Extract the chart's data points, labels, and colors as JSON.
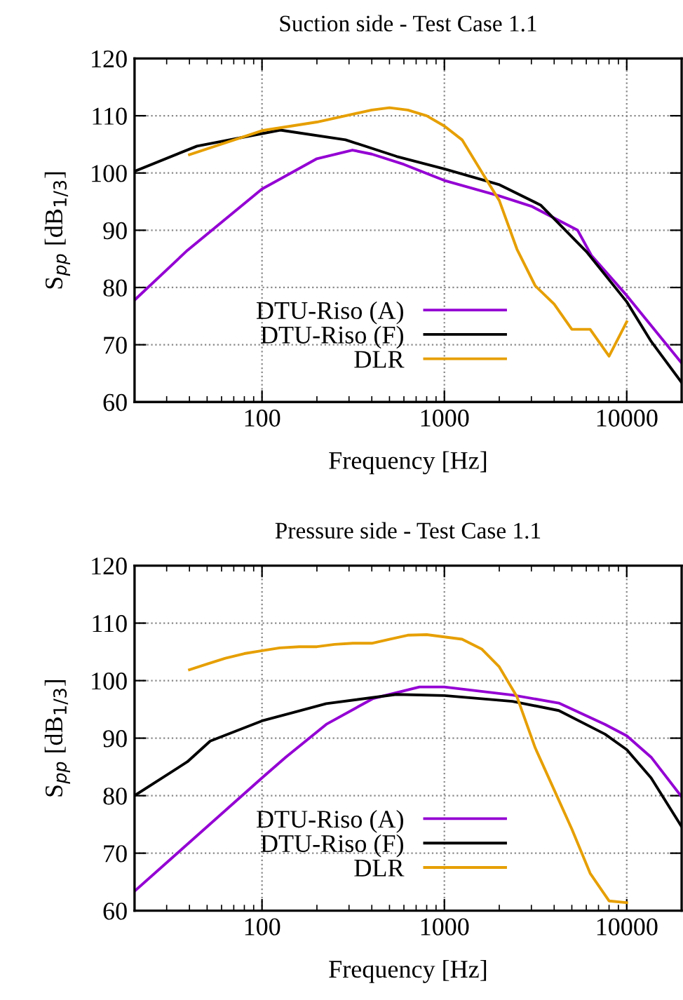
{
  "chart_data": [
    {
      "type": "line",
      "title": "Suction side - Test Case 1.1",
      "xlabel": "Frequency [Hz]",
      "ylabel": "S$_{pp}$ [dB$_{1/3}$]",
      "log": "x",
      "xlim": [
        20,
        20000
      ],
      "xticks": [
        100,
        1000,
        10000
      ],
      "ylim": [
        60,
        120
      ],
      "yticks": [
        60,
        70,
        80,
        90,
        100,
        110,
        120
      ],
      "grid": true,
      "legend": "bottom",
      "series": [
        {
          "name": "DTU-Riso (A)",
          "color": "#9400d3",
          "x": [
            20,
            39,
            100,
            200,
            313,
            400,
            600,
            1000,
            2000,
            3000,
            5380,
            6400,
            10000,
            20000
          ],
          "values": [
            77.8,
            86.5,
            97.2,
            102.5,
            104,
            103.3,
            101.5,
            98.7,
            96,
            94.2,
            90,
            85.6,
            78.6,
            66.8
          ]
        },
        {
          "name": "DTU-Riso (F)",
          "color": "#000000",
          "x": [
            20,
            44,
            126,
            287,
            547,
            1000,
            1987,
            3370,
            6000,
            10000,
            13600,
            20000
          ],
          "values": [
            100.3,
            104.7,
            107.5,
            105.8,
            102.9,
            100.7,
            98,
            94.4,
            86.3,
            77.5,
            70.6,
            63.4
          ]
        },
        {
          "name": "DLR",
          "color": "#e69f00",
          "x": [
            40,
            100,
            200,
            400,
            500,
            630,
            800,
            1000,
            1250,
            1600,
            2000,
            2500,
            3150,
            4000,
            5000,
            6300,
            8000,
            10000
          ],
          "values": [
            103.2,
            107.4,
            108.9,
            111,
            111.4,
            111,
            110,
            108.2,
            105.8,
            100.2,
            95.2,
            86.7,
            80.3,
            77.1,
            72.7,
            72.7,
            68,
            74
          ]
        }
      ]
    },
    {
      "type": "line",
      "title": "Pressure side - Test Case 1.1",
      "xlabel": "Frequency [Hz]",
      "ylabel": "S$_{pp}$ [dB$_{1/3}$]",
      "log": "x",
      "xlim": [
        20,
        20000
      ],
      "xticks": [
        100,
        1000,
        10000
      ],
      "ylim": [
        60,
        120
      ],
      "yticks": [
        60,
        70,
        80,
        90,
        100,
        110,
        120
      ],
      "grid": true,
      "legend": "bottom",
      "series": [
        {
          "name": "DTU-Riso (A)",
          "color": "#9400d3",
          "x": [
            20,
            100,
            135,
            225,
            407,
            730,
            1000,
            2360,
            4240,
            7600,
            10000,
            13600,
            20000
          ],
          "values": [
            63.4,
            83.1,
            86.7,
            92.4,
            96.9,
            98.9,
            98.9,
            97.5,
            96.1,
            92.4,
            90.4,
            86.7,
            79.8
          ]
        },
        {
          "name": "DTU-Riso (F)",
          "color": "#000000",
          "x": [
            20,
            39,
            52,
            100,
            225,
            545,
            1000,
            2360,
            4240,
            7600,
            10000,
            13600,
            20000
          ],
          "values": [
            80,
            85.9,
            89.5,
            93,
            96,
            97.6,
            97.4,
            96.4,
            94.8,
            90.7,
            88,
            83.1,
            74.6
          ]
        },
        {
          "name": "DLR",
          "color": "#e69f00",
          "x": [
            40,
            50,
            63,
            80,
            100,
            125,
            160,
            200,
            250,
            315,
            400,
            500,
            630,
            800,
            1000,
            1250,
            1600,
            2000,
            2500,
            3150,
            4000,
            5000,
            6300,
            8000,
            10000
          ],
          "values": [
            101.9,
            102.9,
            103.9,
            104.7,
            105.2,
            105.7,
            105.9,
            105.9,
            106.3,
            106.5,
            106.5,
            107.2,
            107.9,
            108,
            107.6,
            107.2,
            105.5,
            102.4,
            97.2,
            88.3,
            81,
            74.2,
            66.5,
            61.7,
            61.4
          ]
        }
      ]
    }
  ]
}
